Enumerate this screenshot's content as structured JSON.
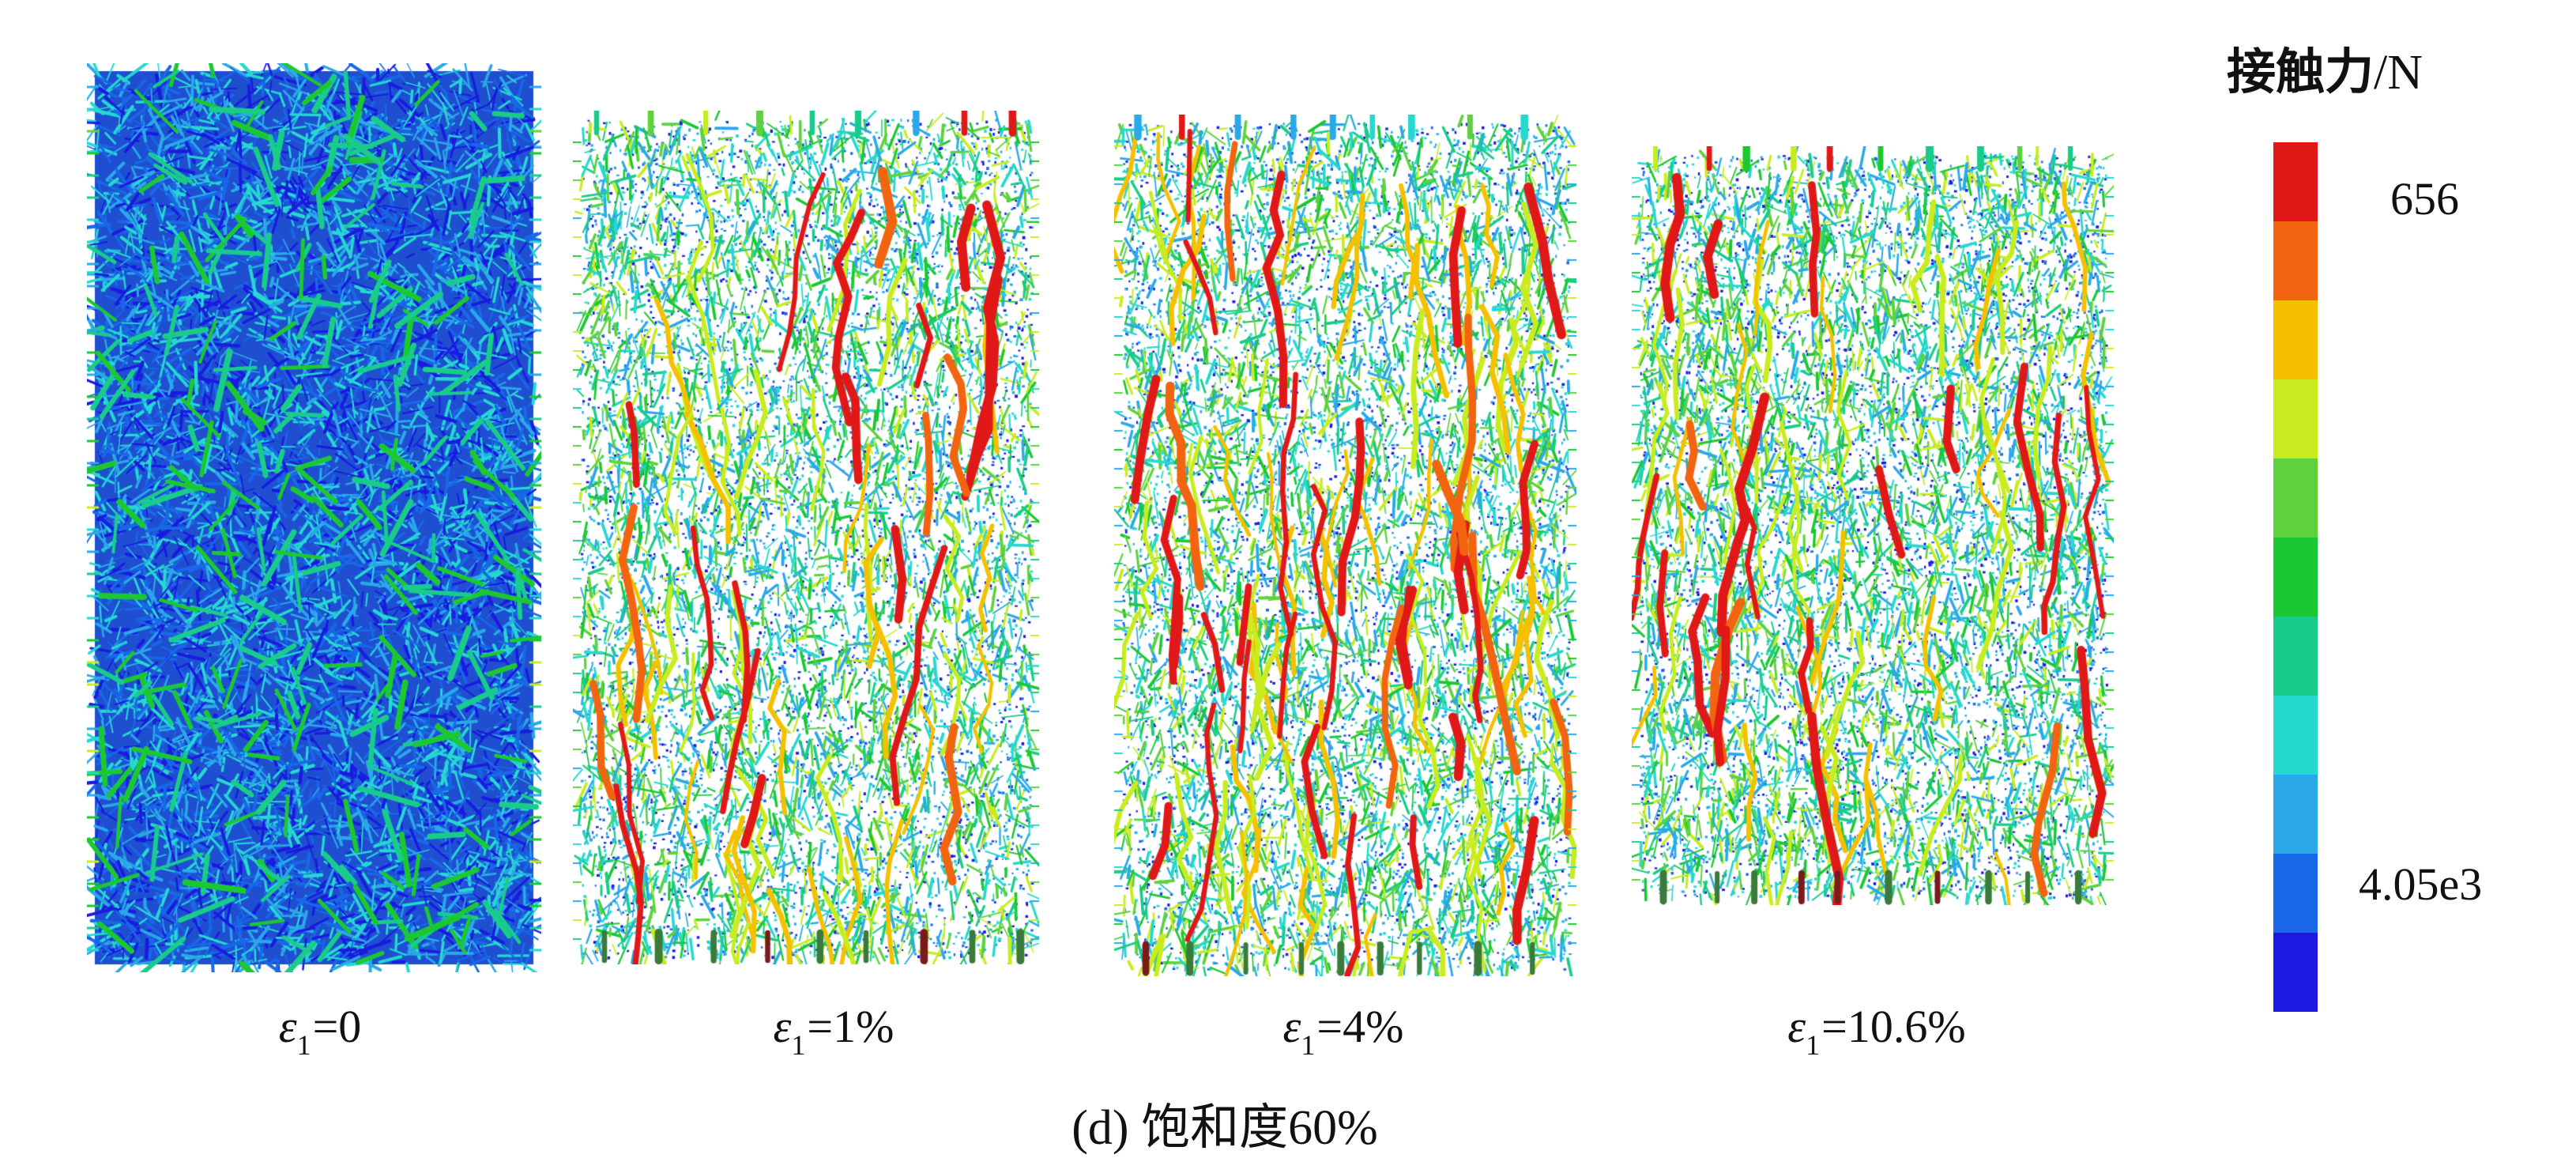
{
  "colorbar": {
    "title_cn": "接触力",
    "title_unit": "/N",
    "max_label": "656",
    "min_label": "4.05e3",
    "colors": [
      "#e01818",
      "#f26410",
      "#f5c000",
      "#c9ec20",
      "#5ed23c",
      "#1cc832",
      "#19cc8a",
      "#25d8d0",
      "#2aa8e8",
      "#1868e8",
      "#1a1ae0"
    ]
  },
  "panels": [
    {
      "eps_symbol": "ε",
      "eps_sub": "1",
      "eps_value": "=0",
      "variant": "initial"
    },
    {
      "eps_symbol": "ε",
      "eps_sub": "1",
      "eps_value": "=1%",
      "variant": "loaded1"
    },
    {
      "eps_symbol": "ε",
      "eps_sub": "1",
      "eps_value": "=4%",
      "variant": "loaded2"
    },
    {
      "eps_symbol": "ε",
      "eps_sub": "1",
      "eps_value": "=10.6%",
      "variant": "loaded3"
    }
  ],
  "figure_caption": "(d) 饱和度60%"
}
